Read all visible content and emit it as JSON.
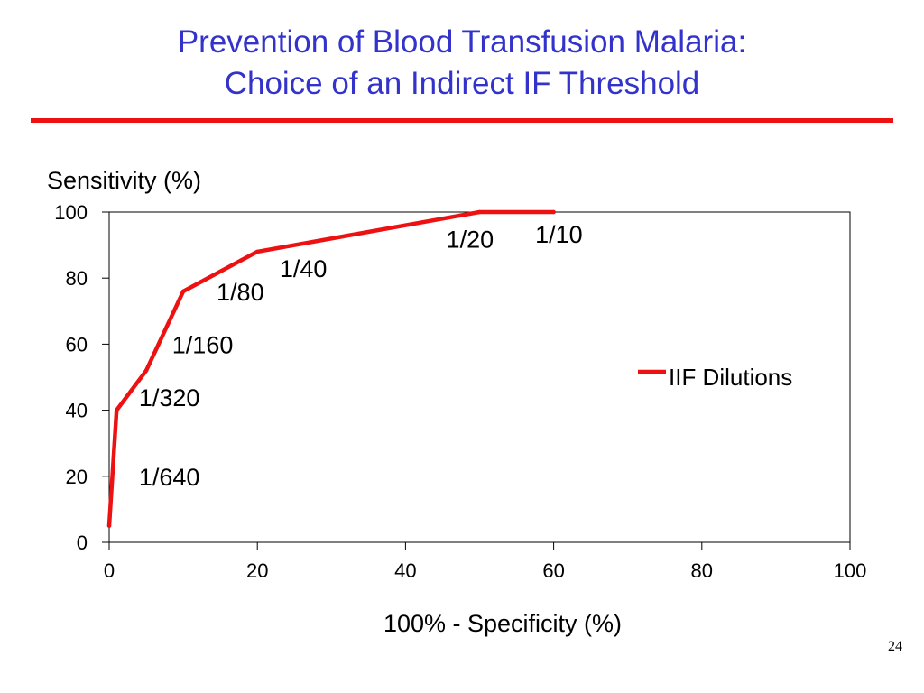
{
  "slide": {
    "title_line1": "Prevention of Blood Transfusion Malaria:",
    "title_line2": "Choice of an Indirect IF Threshold",
    "page_number": "24"
  },
  "colors": {
    "title": "#3333cc",
    "rule": "#ee1111",
    "series": "#ee1111",
    "text": "#000000"
  },
  "chart_data": {
    "type": "line",
    "title": "",
    "ylabel": "Sensitivity (%)",
    "xlabel": "100% - Specificity (%)",
    "xlim": [
      0,
      100
    ],
    "ylim": [
      0,
      100
    ],
    "x_ticks": [
      0,
      20,
      40,
      60,
      80,
      100
    ],
    "y_ticks": [
      0,
      20,
      40,
      60,
      80,
      100
    ],
    "grid": false,
    "legend_position": "right",
    "series": [
      {
        "name": "IIF Dilutions",
        "color": "#ee1111",
        "x": [
          0,
          1,
          5,
          10,
          20,
          50,
          60
        ],
        "y": [
          5,
          40,
          52,
          76,
          88,
          100,
          100
        ]
      }
    ],
    "annotations": [
      {
        "text": "1/640",
        "x": 4,
        "y": 20
      },
      {
        "text": "1/320",
        "x": 4,
        "y": 44
      },
      {
        "text": "1/160",
        "x": 8.5,
        "y": 60
      },
      {
        "text": "1/80",
        "x": 14.5,
        "y": 76
      },
      {
        "text": "1/40",
        "x": 23,
        "y": 83
      },
      {
        "text": "1/20",
        "x": 45.5,
        "y": 92
      },
      {
        "text": "1/10",
        "x": 57.5,
        "y": 93.5
      }
    ]
  }
}
